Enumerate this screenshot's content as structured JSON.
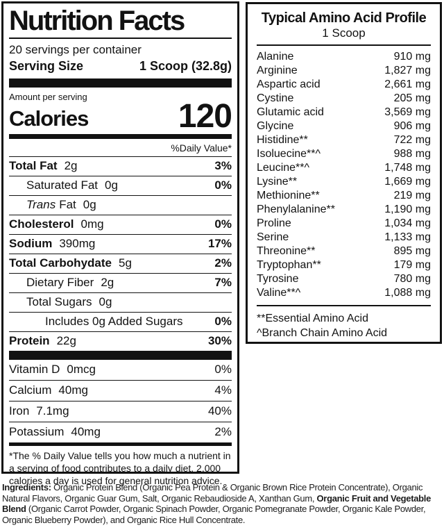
{
  "nutrition_panel": {
    "title": "Nutrition Facts",
    "servings_per_container": "20 servings per container",
    "serving_size_label": "Serving Size",
    "serving_size_value": "1 Scoop (32.8g)",
    "amount_per_serving": "Amount per serving",
    "calories_label": "Calories",
    "calories_value": "120",
    "daily_value_header": "%Daily Value*",
    "rows": [
      {
        "name": "Total Fat",
        "amount": "2g",
        "dv": "3%",
        "bold": true,
        "indent": 0
      },
      {
        "name": "Saturated Fat",
        "amount": "0g",
        "dv": "0%",
        "bold": false,
        "indent": 1
      },
      {
        "name_italic": "Trans",
        "name": "Fat",
        "amount": "0g",
        "dv": "",
        "bold": false,
        "indent": 1
      },
      {
        "name": "Cholesterol",
        "amount": "0mg",
        "dv": "0%",
        "bold": true,
        "indent": 0
      },
      {
        "name": "Sodium",
        "amount": "390mg",
        "dv": "17%",
        "bold": true,
        "indent": 0
      },
      {
        "name": "Total Carbohydate",
        "amount": "5g",
        "dv": "2%",
        "bold": true,
        "indent": 0
      },
      {
        "name": "Dietary Fiber",
        "amount": "2g",
        "dv": "7%",
        "bold": false,
        "indent": 1
      },
      {
        "name": "Total Sugars",
        "amount": "0g",
        "dv": "",
        "bold": false,
        "indent": 1
      },
      {
        "name": "Includes 0g Added Sugars",
        "amount": "",
        "dv": "0%",
        "bold": false,
        "indent": 2
      },
      {
        "name": "Protein",
        "amount": "22g",
        "dv": "30%",
        "bold": true,
        "indent": 0
      }
    ],
    "vitamin_rows": [
      {
        "name": "Vitamin D",
        "amount": "0mcg",
        "dv": "0%"
      },
      {
        "name": "Calcium",
        "amount": "40mg",
        "dv": "4%"
      },
      {
        "name": "Iron",
        "amount": "7.1mg",
        "dv": "40%"
      },
      {
        "name": "Potassium",
        "amount": "40mg",
        "dv": "2%"
      }
    ],
    "footnote": "*The % Daily Value tells you how much a nutrient in a serving of food contributes to a daily diet. 2,000 calories a day is used for general nutrition advice."
  },
  "amino_panel": {
    "title": "Typical Amino Acid Profile",
    "subtitle": "1 Scoop",
    "rows": [
      {
        "name": "Alanine",
        "value": "910 mg"
      },
      {
        "name": "Arginine",
        "value": "1,827 mg"
      },
      {
        "name": "Aspartic acid",
        "value": "2,661 mg"
      },
      {
        "name": "Cystine",
        "value": "205 mg"
      },
      {
        "name": "Glutamic acid",
        "value": "3,569 mg"
      },
      {
        "name": "Glycine",
        "value": "906 mg"
      },
      {
        "name": "Histidine**",
        "value": "722 mg"
      },
      {
        "name": "Isoluecine**^",
        "value": "988 mg"
      },
      {
        "name": "Leucine**^",
        "value": "1,748 mg"
      },
      {
        "name": "Lysine**",
        "value": "1,669 mg"
      },
      {
        "name": "Methionine**",
        "value": "219 mg"
      },
      {
        "name": "Phenylalanine**",
        "value": "1,190 mg"
      },
      {
        "name": "Proline",
        "value": "1,034 mg"
      },
      {
        "name": "Serine",
        "value": "1,133 mg"
      },
      {
        "name": "Threonine**",
        "value": "895 mg"
      },
      {
        "name": "Tryptophan**",
        "value": "179 mg"
      },
      {
        "name": "Tyrosine",
        "value": "780 mg"
      },
      {
        "name": "Valine**^",
        "value": "1,088 mg"
      }
    ],
    "footnotes": [
      "**Essential Amino Acid",
      "^Branch Chain Amino Acid"
    ]
  },
  "ingredients": {
    "segments": [
      {
        "text": "Ingredients: ",
        "bold": true
      },
      {
        "text": "Organic Protein Blend (Organic Pea Protein & Organic Brown Rice Protein Concentrate), Organic Natural Flavors, Organic Guar Gum, Salt, Organic Rebaudioside A, Xanthan Gum, ",
        "bold": false
      },
      {
        "text": "Organic Fruit and Vegetable Blend",
        "bold": true
      },
      {
        "text": " (Organic Carrot Powder, Organic Spinach Powder, Organic Pomegranate Powder, Organic Kale Powder, Organic Blueberry Powder), and Organic Rice Hull Concentrate.",
        "bold": false
      }
    ]
  }
}
